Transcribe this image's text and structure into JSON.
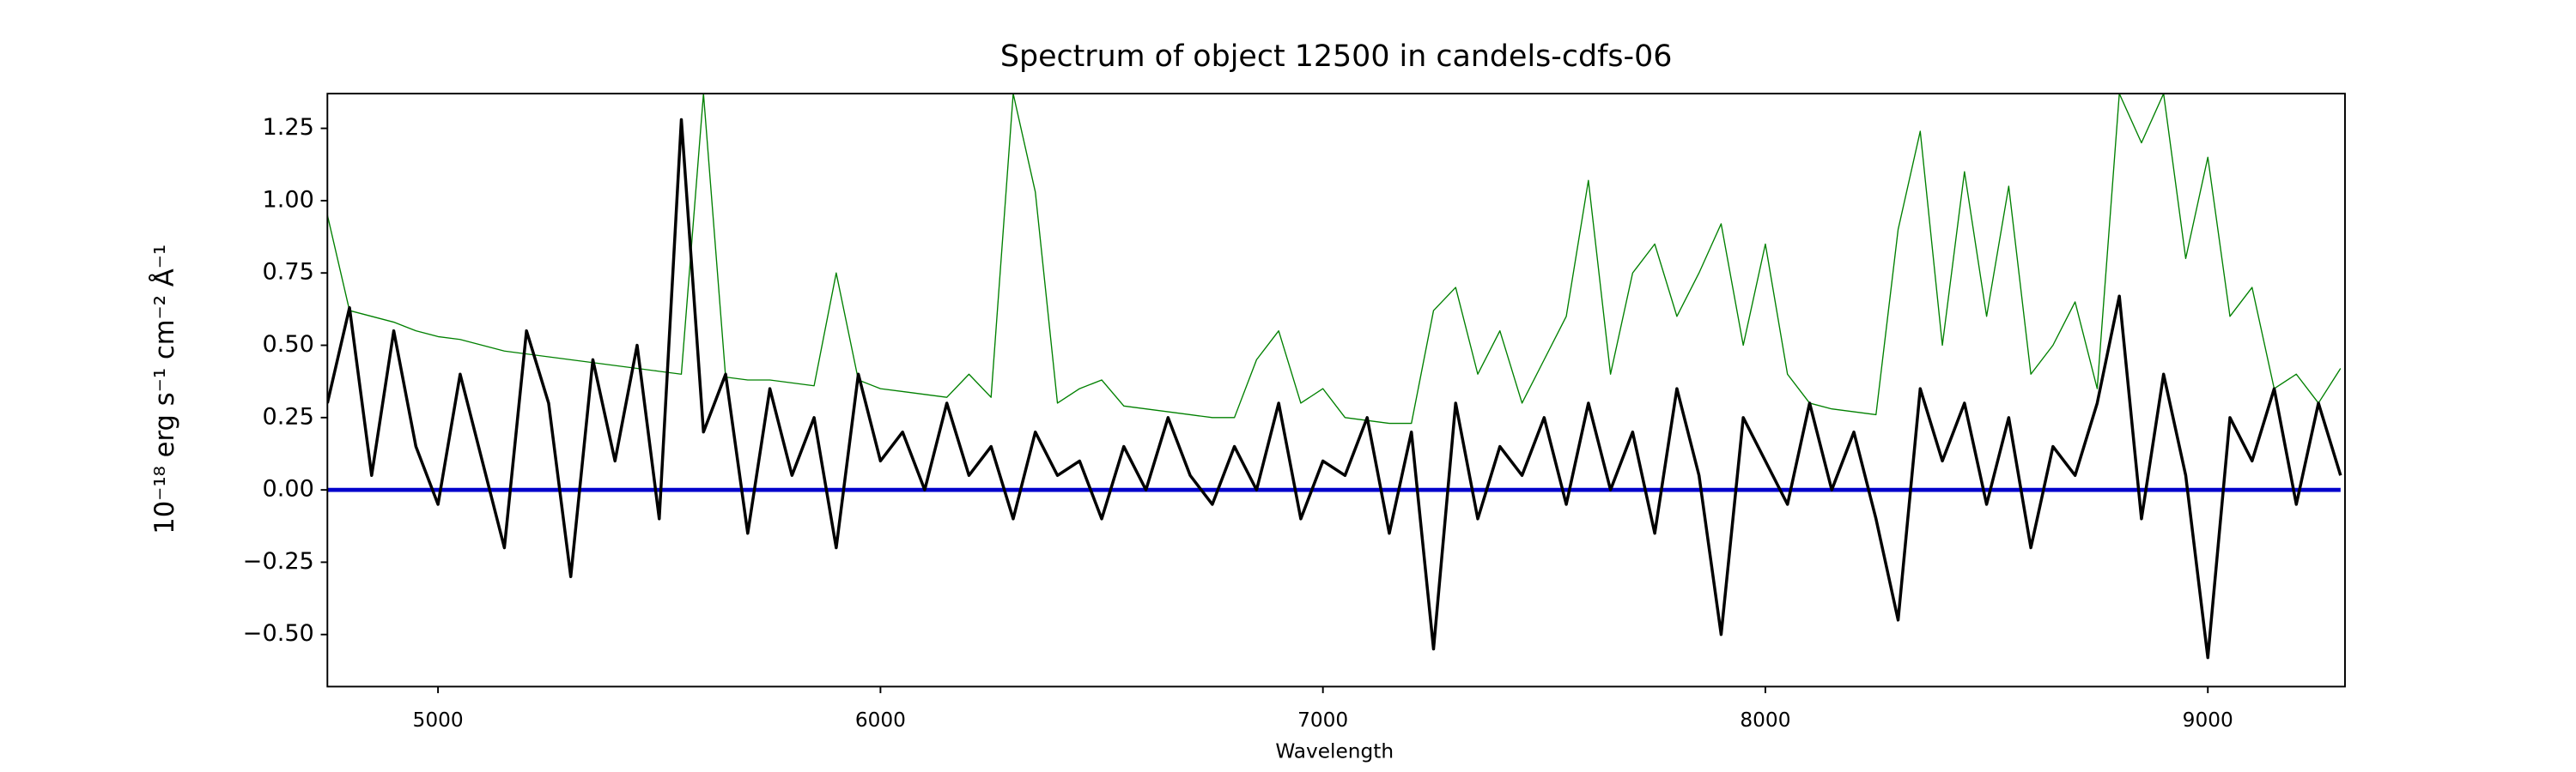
{
  "chart_data": {
    "type": "line",
    "title": "Spectrum of object 12500 in candels-cdfs-06",
    "xlabel": "Wavelength",
    "ylabel": "10⁻¹⁸ erg s⁻¹ cm⁻² Å⁻¹",
    "x": [
      4750,
      4800,
      4850,
      4900,
      4950,
      5000,
      5050,
      5100,
      5150,
      5200,
      5250,
      5300,
      5350,
      5400,
      5450,
      5500,
      5550,
      5600,
      5650,
      5700,
      5750,
      5800,
      5850,
      5900,
      5950,
      6000,
      6050,
      6100,
      6150,
      6200,
      6250,
      6300,
      6350,
      6400,
      6450,
      6500,
      6550,
      6600,
      6650,
      6700,
      6750,
      6800,
      6850,
      6900,
      6950,
      7000,
      7050,
      7100,
      7150,
      7200,
      7250,
      7300,
      7350,
      7400,
      7450,
      7500,
      7550,
      7600,
      7650,
      7700,
      7750,
      7800,
      7850,
      7900,
      7950,
      8000,
      8050,
      8100,
      8150,
      8200,
      8250,
      8300,
      8350,
      8400,
      8450,
      8500,
      8550,
      8600,
      8650,
      8700,
      8750,
      8800,
      8850,
      8900,
      8950,
      9000,
      9050,
      9100,
      9150,
      9200,
      9250,
      9300
    ],
    "series": [
      {
        "color": "#008000",
        "width": 0.7,
        "values": [
          0.95,
          0.62,
          0.6,
          0.58,
          0.55,
          0.53,
          0.52,
          0.5,
          0.48,
          0.47,
          0.46,
          0.45,
          0.44,
          0.43,
          0.42,
          0.41,
          0.4,
          1.37,
          0.39,
          0.38,
          0.38,
          0.37,
          0.36,
          0.75,
          0.38,
          0.35,
          0.34,
          0.33,
          0.32,
          0.4,
          0.32,
          1.37,
          1.03,
          0.3,
          0.35,
          0.38,
          0.29,
          0.28,
          0.27,
          0.26,
          0.25,
          0.25,
          0.45,
          0.55,
          0.3,
          0.35,
          0.25,
          0.24,
          0.23,
          0.23,
          0.62,
          0.7,
          0.4,
          0.55,
          0.3,
          0.45,
          0.6,
          1.07,
          0.4,
          0.75,
          0.85,
          0.6,
          0.75,
          0.92,
          0.5,
          0.85,
          0.4,
          0.3,
          0.28,
          0.27,
          0.26,
          0.9,
          1.24,
          0.5,
          1.1,
          0.6,
          1.05,
          0.4,
          0.5,
          0.65,
          0.35,
          1.37,
          1.2,
          1.37,
          0.8,
          1.15,
          0.6,
          0.7,
          0.35,
          0.4,
          0.3,
          0.42
        ]
      },
      {
        "color": "#0000cc",
        "width": 2.5,
        "values": [
          0,
          0,
          0,
          0,
          0,
          0,
          0,
          0,
          0,
          0,
          0,
          0,
          0,
          0,
          0,
          0,
          0,
          0,
          0,
          0,
          0,
          0,
          0,
          0,
          0,
          0,
          0,
          0,
          0,
          0,
          0,
          0,
          0,
          0,
          0,
          0,
          0,
          0,
          0,
          0,
          0,
          0,
          0,
          0,
          0,
          0,
          0,
          0,
          0,
          0,
          0,
          0,
          0,
          0,
          0,
          0,
          0,
          0,
          0,
          0,
          0,
          0,
          0,
          0,
          0,
          0,
          0,
          0,
          0,
          0,
          0,
          0,
          0,
          0,
          0,
          0,
          0,
          0,
          0,
          0,
          0,
          0,
          0,
          0,
          0,
          0,
          0,
          0,
          0,
          0,
          0,
          0
        ]
      },
      {
        "color": "#000000",
        "width": 1.8,
        "values": [
          0.3,
          0.63,
          0.05,
          0.55,
          0.15,
          -0.05,
          0.4,
          0.1,
          -0.2,
          0.55,
          0.3,
          -0.3,
          0.45,
          0.1,
          0.5,
          -0.1,
          1.28,
          0.2,
          0.4,
          -0.15,
          0.35,
          0.05,
          0.25,
          -0.2,
          0.4,
          0.1,
          0.2,
          0.0,
          0.3,
          0.05,
          0.15,
          -0.1,
          0.2,
          0.05,
          0.1,
          -0.1,
          0.15,
          0.0,
          0.25,
          0.05,
          -0.05,
          0.15,
          0.0,
          0.3,
          -0.1,
          0.1,
          0.05,
          0.25,
          -0.15,
          0.2,
          -0.55,
          0.3,
          -0.1,
          0.15,
          0.05,
          0.25,
          -0.05,
          0.3,
          0.0,
          0.2,
          -0.15,
          0.35,
          0.05,
          -0.5,
          0.25,
          0.1,
          -0.05,
          0.3,
          0.0,
          0.2,
          -0.1,
          -0.45,
          0.35,
          0.1,
          0.3,
          -0.05,
          0.25,
          -0.2,
          0.15,
          0.05,
          0.3,
          0.67,
          -0.1,
          0.4,
          0.05,
          -0.58,
          0.25,
          0.1,
          0.35,
          -0.05,
          0.3,
          0.05
        ]
      }
    ],
    "xlim": [
      4750,
      9310
    ],
    "ylim": [
      -0.68,
      1.37
    ],
    "xticks": [
      5000,
      6000,
      7000,
      8000,
      9000
    ],
    "yticks": [
      {
        "value": -0.5,
        "label": "−0.50"
      },
      {
        "value": -0.25,
        "label": "−0.25"
      },
      {
        "value": 0,
        "label": "0.00"
      },
      0.25,
      {
        "value": 0.5,
        "label": "0.50"
      },
      0.75,
      {
        "value": 1,
        "label": "1.00"
      },
      1.25
    ],
    "grid": false
  }
}
